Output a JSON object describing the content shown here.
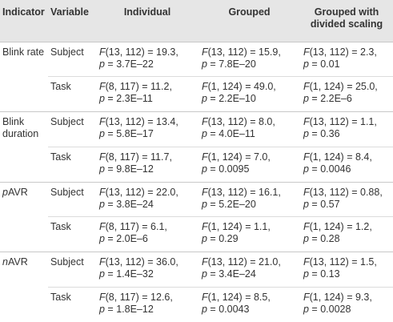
{
  "table": {
    "header": [
      "Indicator",
      "Variable",
      "Individual",
      "Grouped",
      "Grouped with divided scaling"
    ],
    "groups": [
      {
        "indicator": "Blink rate",
        "rows": [
          {
            "variable": "Subject",
            "cells": [
              [
                "F(13, 112) = 19.3,",
                "p = 3.7E–22"
              ],
              [
                "F(13, 112) = 15.9,",
                "p = 7.8E–20"
              ],
              [
                "F(13, 112) = 2.3,",
                "p = 0.01"
              ]
            ]
          },
          {
            "variable": "Task",
            "cells": [
              [
                "F(8, 117) = 11.2,",
                "p = 2.3E–11"
              ],
              [
                "F(1, 124) = 49.0,",
                "p = 2.2E–10"
              ],
              [
                "F(1, 124) = 25.0,",
                "p = 2.2E–6"
              ]
            ]
          }
        ]
      },
      {
        "indicator": "Blink duration",
        "rows": [
          {
            "variable": "Subject",
            "cells": [
              [
                "F(13, 112) = 13.4,",
                "p = 5.8E–17"
              ],
              [
                "F(13, 112) = 8.0,",
                "p = 4.0E–11"
              ],
              [
                "F(13, 112) = 1.1,",
                "p = 0.36"
              ]
            ]
          },
          {
            "variable": "Task",
            "cells": [
              [
                "F(8, 117) = 11.7,",
                "p = 9.8E–12"
              ],
              [
                "F(1, 124) = 7.0,",
                "p = 0.0095"
              ],
              [
                "F(1, 124) = 8.4,",
                "p = 0.0046"
              ]
            ]
          }
        ]
      },
      {
        "indicator": "pAVR",
        "rows": [
          {
            "variable": "Subject",
            "cells": [
              [
                "F(13, 112) = 22.0,",
                "p = 3.8E–24"
              ],
              [
                "F(13, 112) = 16.1,",
                "p = 5.2E–20"
              ],
              [
                "F(13, 112) = 0.88,",
                "p = 0.57"
              ]
            ]
          },
          {
            "variable": "Task",
            "cells": [
              [
                "F(8, 117) = 6.1,",
                "p = 2.0E–6"
              ],
              [
                "F(1, 124) = 1.1,",
                "p = 0.29"
              ],
              [
                "F(1, 124) = 1.2,",
                "p = 0.28"
              ]
            ]
          }
        ]
      },
      {
        "indicator": "nAVR",
        "rows": [
          {
            "variable": "Subject",
            "cells": [
              [
                "F(13, 112) = 36.0,",
                "p = 1.4E–32"
              ],
              [
                "F(13, 112) = 21.0,",
                "p = 3.4E–24"
              ],
              [
                "F(13, 112) = 1.5,",
                "p = 0.13"
              ]
            ]
          },
          {
            "variable": "Task",
            "cells": [
              [
                "F(8, 117) = 12.6,",
                "p = 1.8E–12"
              ],
              [
                "F(1, 124) = 8.5,",
                "p = 0.0043"
              ],
              [
                "F(1, 124) = 9.3,",
                "p = 0.0028"
              ]
            ]
          }
        ]
      }
    ]
  }
}
